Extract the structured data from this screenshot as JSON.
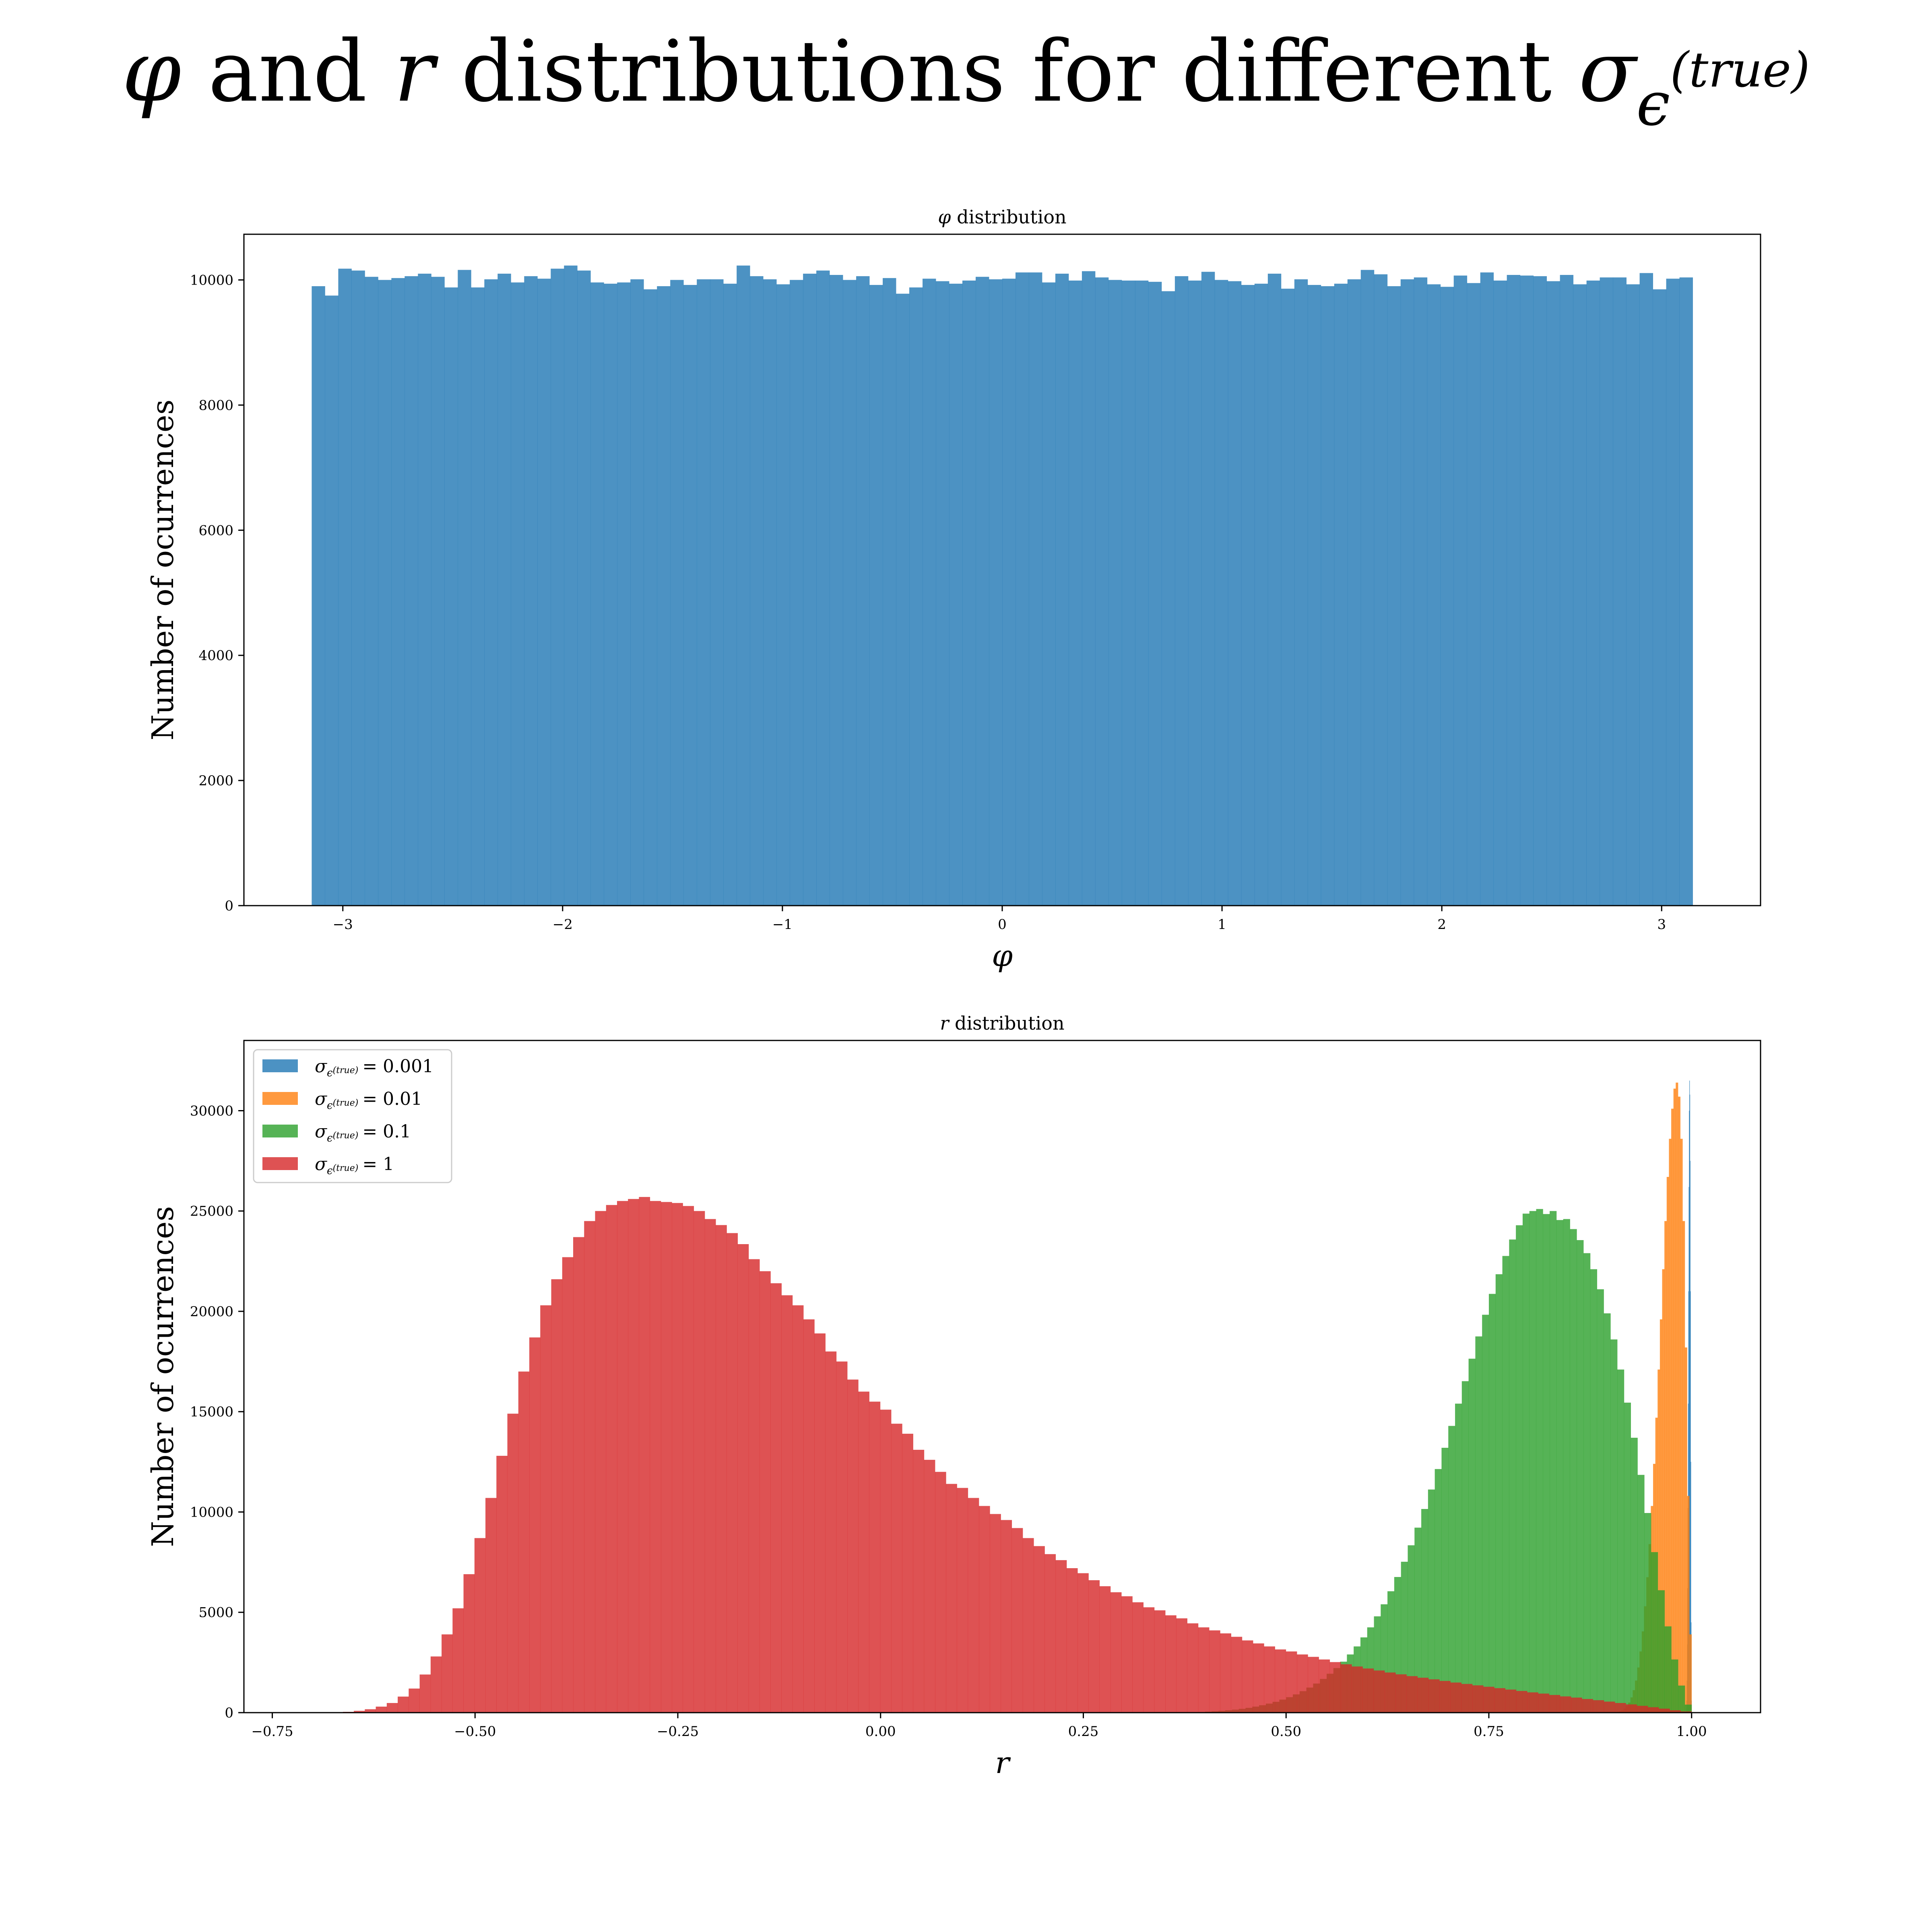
{
  "figure": {
    "suptitle": {
      "greek_phi": "φ",
      "text_and": " and ",
      "r": "r",
      "text_rest": " distributions for different ",
      "sigma": "σ",
      "sub_epsilon": "ϵ",
      "sup_true": "(true)"
    }
  },
  "colors": {
    "blue": "#1f77b4",
    "orange": "#ff7f0e",
    "green": "#2ca02c",
    "red": "#d62728"
  },
  "chart_data": [
    {
      "id": "phi",
      "type": "bar",
      "title_symbol": "φ",
      "title_text": " distribution",
      "xlabel": "φ",
      "ylabel": "Number of ocurrences",
      "xlim": [
        -3.45,
        3.45
      ],
      "ylim": [
        0,
        10730
      ],
      "xticks": [
        -3,
        -2,
        -1,
        0,
        1,
        2,
        3
      ],
      "xtick_labels": [
        "−3",
        "−2",
        "−1",
        "0",
        "1",
        "2",
        "3"
      ],
      "yticks": [
        0,
        2000,
        4000,
        6000,
        8000,
        10000
      ],
      "ytick_labels": [
        "0",
        "2000",
        "4000",
        "6000",
        "8000",
        "10000"
      ],
      "grid": false,
      "alpha": 0.8,
      "series": [
        {
          "color": "#1f77b4",
          "bin_start": -3.1416,
          "bin_end": 3.1416,
          "values": [
            9900,
            9750,
            10180,
            10150,
            10050,
            10000,
            10030,
            10060,
            10100,
            10050,
            9880,
            10160,
            9880,
            10010,
            10100,
            9960,
            10060,
            10020,
            10180,
            10230,
            10150,
            9960,
            9940,
            9960,
            10010,
            9850,
            9900,
            10000,
            9920,
            10010,
            10010,
            9940,
            10230,
            10060,
            10010,
            9930,
            10000,
            10100,
            10150,
            10080,
            10000,
            10060,
            9920,
            10030,
            9780,
            9880,
            10020,
            9980,
            9940,
            9990,
            10050,
            10010,
            10020,
            10120,
            10120,
            9960,
            10100,
            9990,
            10140,
            10040,
            10000,
            9990,
            9990,
            9970,
            9820,
            10060,
            9990,
            10130,
            10000,
            9980,
            9920,
            9940,
            10100,
            9860,
            10010,
            9920,
            9900,
            9940,
            10010,
            10160,
            10090,
            9900,
            10010,
            10040,
            9930,
            9890,
            10070,
            9950,
            10120,
            9990,
            10080,
            10070,
            10060,
            9980,
            10080,
            9930,
            9990,
            10040,
            10040,
            9930,
            10110,
            9850,
            10020,
            10040
          ]
        }
      ]
    },
    {
      "id": "r",
      "type": "bar",
      "title_symbol": "r",
      "title_text": " distribution",
      "xlabel": "r",
      "ylabel": "Number of ocurrences",
      "xlim": [
        -0.785,
        1.085
      ],
      "ylim": [
        0,
        33500
      ],
      "xticks": [
        -0.75,
        -0.5,
        -0.25,
        0.0,
        0.25,
        0.5,
        0.75,
        1.0
      ],
      "xtick_labels": [
        "−0.75",
        "−0.50",
        "−0.25",
        "0.00",
        "0.25",
        "0.50",
        "0.75",
        "1.00"
      ],
      "yticks": [
        0,
        5000,
        10000,
        15000,
        20000,
        25000,
        30000
      ],
      "ytick_labels": [
        "0",
        "5000",
        "10000",
        "15000",
        "20000",
        "25000",
        "30000"
      ],
      "grid": false,
      "alpha": 0.8,
      "legend_placement": "upper-left",
      "series": [
        {
          "legend": {
            "sigma": "σ",
            "sub": "ϵ",
            "sup": "(true)",
            "value": "= 0.001"
          },
          "color": "#1f77b4",
          "bin_start": 0.9928,
          "bin_end": 1.0,
          "values": [
            60,
            200,
            600,
            1600,
            3400,
            6200,
            10200,
            15400,
            21000,
            26200,
            30000,
            31500,
            30800,
            27500,
            21000,
            12500,
            4500,
            600
          ]
        },
        {
          "legend": {
            "sigma": "σ",
            "sub": "ϵ",
            "sup": "(true)",
            "value": "= 0.01"
          },
          "color": "#ff7f0e",
          "bin_start": 0.905,
          "bin_end": 1.0,
          "values": [
            20,
            40,
            80,
            120,
            200,
            320,
            500,
            760,
            1120,
            1600,
            2250,
            3050,
            4050,
            5300,
            6750,
            8400,
            10300,
            12400,
            14700,
            17100,
            19600,
            22100,
            24500,
            26700,
            28600,
            30100,
            31100,
            31400,
            30700,
            28600,
            24500,
            18200,
            10800,
            3900
          ]
        },
        {
          "legend": {
            "sigma": "σ",
            "sub": "ϵ",
            "sup": "(true)",
            "value": "= 0.1"
          },
          "color": "#2ca02c",
          "bin_start": 0.4,
          "bin_end": 1.0,
          "values": [
            50,
            70,
            90,
            120,
            150,
            190,
            240,
            300,
            370,
            450,
            540,
            650,
            770,
            910,
            1070,
            1250,
            1450,
            1680,
            1940,
            2220,
            2540,
            2900,
            3300,
            3750,
            4250,
            4800,
            5400,
            6050,
            6760,
            7520,
            8340,
            9220,
            10150,
            11120,
            12140,
            13200,
            14290,
            15400,
            16520,
            17640,
            18750,
            19830,
            20870,
            21850,
            22760,
            23580,
            24290,
            24870,
            25000,
            25100,
            24850,
            25000,
            24550,
            24600,
            24100,
            23550,
            22900,
            22100,
            21100,
            19900,
            18600,
            17100,
            15450,
            13700,
            11850,
            9950,
            8000,
            6100,
            4300,
            2650,
            1350,
            400
          ]
        },
        {
          "legend": {
            "sigma": "σ",
            "sub": "ϵ",
            "sup": "(true)",
            "value": "= 1"
          },
          "color": "#d62728",
          "bin_start": -0.69,
          "bin_end": 1.0,
          "values": [
            5,
            15,
            40,
            90,
            170,
            300,
            480,
            800,
            1200,
            1900,
            2800,
            3900,
            5200,
            6900,
            8700,
            10700,
            12800,
            14900,
            17000,
            18700,
            20300,
            21600,
            22700,
            23700,
            24500,
            25000,
            25300,
            25500,
            25600,
            25700,
            25500,
            25450,
            25400,
            25250,
            25000,
            24600,
            24300,
            23900,
            23350,
            22600,
            22000,
            21400,
            20800,
            20300,
            19600,
            18900,
            18000,
            17500,
            16600,
            16000,
            15500,
            15100,
            14400,
            13900,
            13100,
            12600,
            12000,
            11400,
            11200,
            10700,
            10300,
            9900,
            9600,
            9200,
            8700,
            8300,
            7900,
            7600,
            7200,
            6950,
            6600,
            6300,
            6000,
            5800,
            5500,
            5250,
            5100,
            4850,
            4700,
            4450,
            4250,
            4100,
            3950,
            3780,
            3600,
            3450,
            3300,
            3150,
            3050,
            2900,
            2780,
            2650,
            2520,
            2410,
            2300,
            2200,
            2100,
            2000,
            1910,
            1820,
            1740,
            1660,
            1580,
            1500,
            1430,
            1360,
            1290,
            1220,
            1150,
            1080,
            1010,
            950,
            880,
            810,
            750,
            680,
            620,
            550,
            480,
            410,
            340,
            270,
            200,
            120,
            60
          ]
        }
      ]
    }
  ]
}
